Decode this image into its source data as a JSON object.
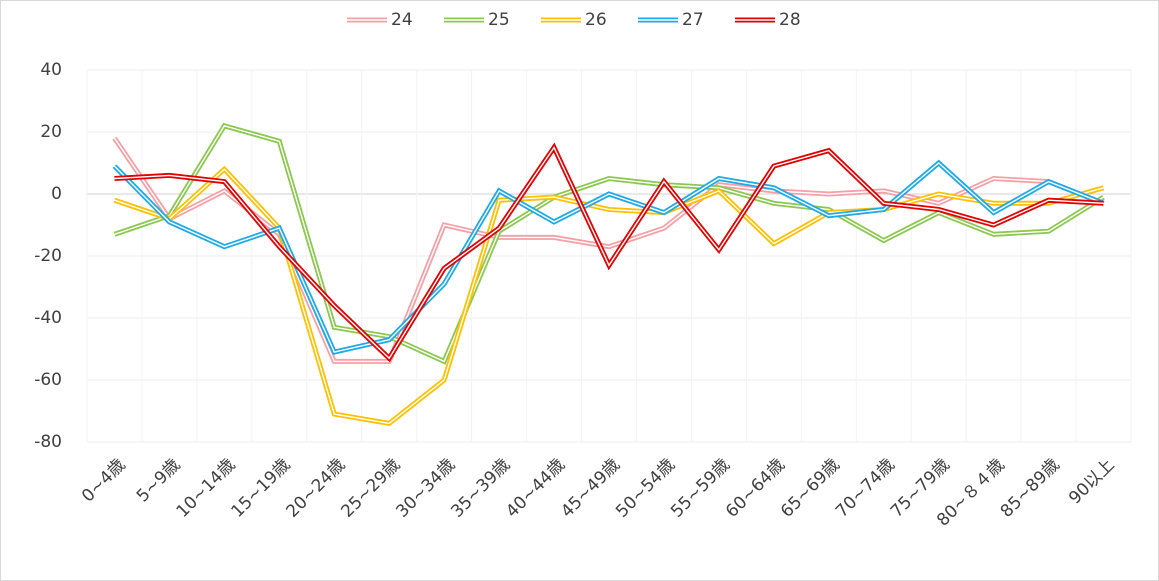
{
  "chart_data": {
    "type": "line",
    "categories": [
      "0~4歳",
      "5~9歳",
      "10~14歳",
      "15~19歳",
      "20~24歳",
      "25~29歳",
      "30~34歳",
      "35~39歳",
      "40~44歳",
      "45~49歳",
      "50~54歳",
      "55~59歳",
      "60~64歳",
      "65~69歳",
      "70~74歳",
      "75~79歳",
      "80~８４歳",
      "85~89歳",
      "90以上"
    ],
    "series": [
      {
        "name": "24",
        "color": "#f4a0a6",
        "values": [
          18,
          -8,
          1,
          -13,
          -54,
          -54,
          -10,
          -14,
          -14,
          -17,
          -11,
          3,
          1,
          0,
          1,
          -3,
          5,
          4,
          -3
        ]
      },
      {
        "name": "25",
        "color": "#8cc850",
        "values": [
          -13,
          -7,
          22,
          17,
          -43,
          -46,
          -54,
          -12,
          -1,
          5,
          3,
          2,
          -3,
          -5,
          -15,
          -6,
          -13,
          -12,
          -1
        ]
      },
      {
        "name": "26",
        "color": "#ffc000",
        "values": [
          -2,
          -8,
          8,
          -11,
          -71,
          -74,
          -60,
          -2,
          -1,
          -5,
          -6,
          1,
          -16,
          -6,
          -5,
          0,
          -3,
          -3,
          2
        ]
      },
      {
        "name": "27",
        "color": "#1eaae6",
        "values": [
          9,
          -9,
          -17,
          -11,
          -51,
          -47,
          -29,
          1,
          -9,
          0,
          -6,
          5,
          2,
          -7,
          -5,
          10,
          -6,
          4,
          -3
        ]
      },
      {
        "name": "28",
        "color": "#e00000",
        "values": [
          5,
          6,
          4,
          -17,
          -36,
          -53,
          -24,
          -11,
          15,
          -23,
          4,
          -18,
          9,
          14,
          -3,
          -5,
          -10,
          -2,
          -3
        ]
      }
    ],
    "ylim": [
      -80,
      40
    ],
    "yticks": [
      -80,
      -60,
      -40,
      -20,
      0,
      20,
      40
    ],
    "grid": true,
    "legend": "top"
  }
}
